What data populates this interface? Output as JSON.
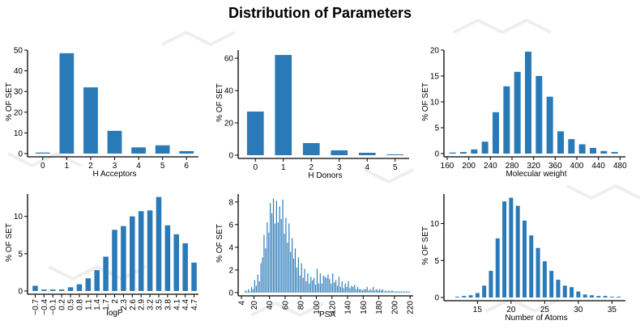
{
  "title": "Distribution of Parameters",
  "colors": {
    "bar": "#2a7ab8",
    "axis": "#000000",
    "background_motif": "#eeeeee"
  },
  "chart_data": [
    {
      "type": "bar",
      "xlabel": "H Acceptors",
      "ylabel": "% OF SET",
      "categories": [
        "0",
        "1",
        "2",
        "3",
        "4",
        "5",
        "6"
      ],
      "values": [
        0.5,
        48.5,
        32,
        11,
        3,
        4,
        1.2
      ],
      "ylim": [
        0,
        50
      ],
      "yticks": [
        0,
        10,
        20,
        30,
        40,
        50
      ]
    },
    {
      "type": "bar",
      "xlabel": "H Donors",
      "ylabel": "% OF SET",
      "categories": [
        "0",
        "1",
        "2",
        "3",
        "4",
        "5"
      ],
      "values": [
        27,
        62,
        7.5,
        3,
        1.5,
        0.5
      ],
      "ylim": [
        0,
        65
      ],
      "yticks": [
        0,
        20,
        40,
        60
      ]
    },
    {
      "type": "bar",
      "xlabel": "Molecular weight",
      "ylabel": "% OF SET",
      "x": [
        170,
        190,
        210,
        230,
        250,
        270,
        290,
        310,
        330,
        350,
        370,
        390,
        410,
        430,
        450,
        470
      ],
      "values": [
        0.2,
        0.3,
        0.8,
        2.3,
        8,
        13,
        15.8,
        19.7,
        15,
        11,
        4.3,
        2.8,
        1.8,
        1.1,
        0.5,
        0.3
      ],
      "xlim": [
        160,
        490
      ],
      "xticks": [
        160,
        200,
        240,
        280,
        320,
        360,
        400,
        440,
        480
      ],
      "ylim": [
        0,
        20
      ],
      "yticks": [
        0,
        5,
        10,
        15,
        20
      ]
    },
    {
      "type": "bar",
      "xlabel": "logP",
      "ylabel": "% OF SET",
      "categories": [
        "−0.7",
        "−0.4",
        "−0.1",
        "0.2",
        "0.5",
        "0.8",
        "1.1",
        "1.4",
        "1.7",
        "2",
        "2.3",
        "2.6",
        "2.9",
        "3.2",
        "3.5",
        "3.8",
        "4.1",
        "4.4",
        "4.7"
      ],
      "values": [
        0.7,
        0.2,
        0.2,
        0.2,
        0.5,
        0.9,
        1.7,
        2.8,
        4.6,
        8.2,
        8.7,
        10.0,
        10.7,
        10.8,
        12.6,
        8.8,
        7.6,
        6.4,
        3.8
      ],
      "ylim": [
        0,
        13
      ],
      "yticks": [
        0,
        5,
        10
      ]
    },
    {
      "type": "bar",
      "xlabel": "PSA",
      "ylabel": "% OF SET",
      "x": [
        9,
        11,
        13,
        15,
        17,
        19,
        21,
        23,
        25,
        27,
        29,
        31,
        33,
        35,
        37,
        39,
        41,
        43,
        45,
        47,
        49,
        51,
        53,
        55,
        57,
        59,
        61,
        63,
        65,
        67,
        69,
        71,
        73,
        75,
        77,
        79,
        81,
        83,
        85,
        87,
        89,
        91,
        93,
        95,
        97,
        99,
        101,
        103,
        105,
        107,
        109,
        111,
        113,
        115,
        117,
        119,
        121,
        123,
        125,
        127,
        129,
        131,
        133,
        135,
        137,
        139,
        141,
        143,
        145,
        147,
        149,
        151,
        153,
        155,
        157,
        159,
        161,
        163,
        165,
        167,
        169,
        171,
        173,
        175,
        177,
        179,
        181,
        183,
        185,
        187,
        189,
        191,
        193,
        195,
        197,
        199,
        201,
        203,
        205,
        207,
        209,
        211,
        213,
        215,
        217,
        219
      ],
      "values": [
        0.2,
        0.1,
        0.3,
        0.1,
        0.5,
        0.3,
        1.1,
        0.6,
        1.6,
        1.0,
        2.6,
        3.1,
        5.1,
        3.9,
        6.2,
        5.3,
        7.9,
        7.0,
        8.3,
        6.1,
        8.1,
        6.2,
        7.6,
        6.5,
        8.2,
        5.2,
        6.6,
        4.4,
        6.1,
        3.6,
        4.8,
        3.0,
        3.9,
        2.2,
        3.1,
        1.5,
        2.6,
        1.3,
        2.1,
        1.0,
        1.7,
        0.8,
        1.4,
        1.1,
        1.3,
        0.7,
        2.1,
        0.8,
        1.7,
        0.8,
        1.5,
        1.4,
        1.3,
        1.6,
        1.2,
        0.8,
        1.7,
        0.9,
        1.1,
        0.6,
        1.4,
        0.5,
        1.0,
        0.4,
        0.8,
        0.5,
        1.0,
        0.4,
        0.6,
        0.5,
        0.7,
        0.3,
        0.5,
        0.3,
        0.3,
        0.2,
        0.3,
        0.3,
        0.5,
        0.2,
        0.3,
        0.2,
        0.5,
        0.2,
        0.3,
        0.2,
        0.3,
        0.2,
        0.3,
        0.1,
        0.2,
        0.1,
        0.2,
        0.1,
        0.2,
        0.1,
        0.1,
        0.1,
        0.1,
        0.1,
        0.1,
        0.1,
        0.1,
        0.1,
        0.1,
        0.1
      ],
      "xlim": [
        4,
        224
      ],
      "xticks": [
        4,
        20,
        40,
        60,
        80,
        100,
        120,
        140,
        160,
        180,
        200,
        220
      ],
      "ylim": [
        0,
        8.7
      ],
      "yticks": [
        0,
        2,
        4,
        6,
        8
      ]
    },
    {
      "type": "bar",
      "xlabel": "Number of Atoms",
      "ylabel": "% OF SET",
      "x": [
        12,
        13,
        14,
        15,
        16,
        17,
        18,
        19,
        20,
        21,
        22,
        23,
        24,
        25,
        26,
        27,
        28,
        29,
        30,
        31,
        32,
        33,
        34,
        35,
        36
      ],
      "values": [
        0.1,
        0.2,
        0.3,
        0.6,
        1.6,
        3.6,
        8.0,
        13.0,
        13.5,
        12.4,
        10.4,
        8.4,
        6.7,
        4.9,
        3.6,
        2.4,
        1.6,
        1.4,
        0.8,
        0.4,
        0.3,
        0.2,
        0.2,
        0.1,
        0.1
      ],
      "xlim": [
        10.5,
        37
      ],
      "xticks": [
        15,
        20,
        25,
        30,
        35
      ],
      "ylim": [
        0,
        14
      ],
      "yticks": [
        0,
        5,
        10
      ]
    }
  ]
}
